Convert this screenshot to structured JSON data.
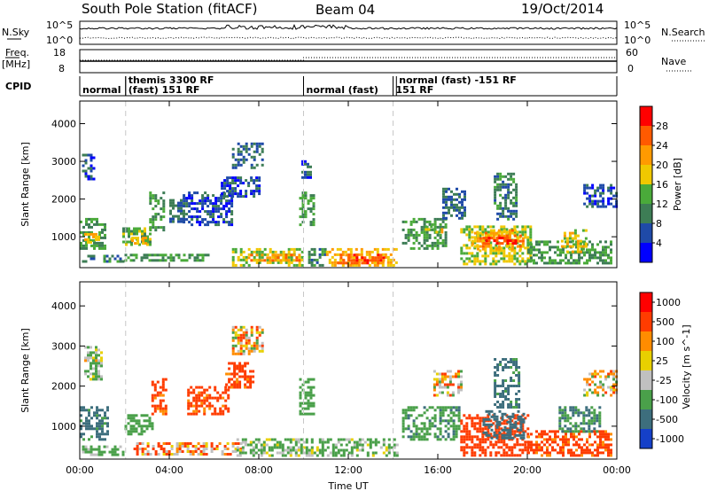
{
  "header": {
    "station": "South Pole Station (fitACF)",
    "beam": "Beam 04",
    "date": "19/Oct/2014"
  },
  "top_panels": {
    "nsky_label": "N.Sky",
    "nsearch_label": "N.Search",
    "freq_label_1": "Freq.",
    "freq_label_2": "[MHz]",
    "nave_label": "Nave",
    "cpid_label": "CPID",
    "nsky_ticks": [
      "10^5",
      "10^0"
    ],
    "nsearch_ticks": [
      "10^5",
      "10^0"
    ],
    "freq_ticks": [
      "18",
      "8"
    ],
    "nave_ticks": [
      "60",
      "0"
    ]
  },
  "cpid_modes": [
    {
      "label": "normal",
      "row": 1,
      "start_hour": 0.0
    },
    {
      "label": "themis 3300 RF",
      "row": 0,
      "start_hour": 2.05
    },
    {
      "label": "(fast) 151 RF",
      "row": 1,
      "start_hour": 2.05
    },
    {
      "label": "normal (fast)",
      "row": 1,
      "start_hour": 10.0
    },
    {
      "label": "151 RF",
      "row": 1,
      "start_hour": 14.0
    },
    {
      "label": "normal (fast) -151 RF",
      "row": 0,
      "start_hour": 14.15
    }
  ],
  "mode_change_hours": [
    2.05,
    10.0,
    14.0
  ],
  "axes": {
    "xlabel": "Time UT",
    "ylabel": "Slant Range [km]",
    "x_ticks": [
      "00:00",
      "04:00",
      "08:00",
      "12:00",
      "16:00",
      "20:00",
      "00:00"
    ],
    "y_ticks": [
      1000,
      2000,
      3000,
      4000
    ],
    "xlim": [
      0,
      24
    ],
    "ylim": [
      180,
      4600
    ]
  },
  "colors": {
    "power": [
      "#0000ff",
      "#1f4aa8",
      "#3d7d55",
      "#4aaa3a",
      "#f0c800",
      "#ff9a00",
      "#ff5a00",
      "#ff0000"
    ],
    "velocity": [
      "#1540c8",
      "#3d6e7d",
      "#4aa04a",
      "#c0c0c0",
      "#e8d000",
      "#ff8c00",
      "#ff3c00",
      "#ff0000"
    ]
  },
  "colorbars": [
    {
      "label": "Power [dB]",
      "ticks": [
        "28",
        "24",
        "20",
        "16",
        "12",
        "8",
        "4"
      ]
    },
    {
      "label": "Velocity [m s^-1]",
      "ticks": [
        "1000",
        "500",
        "100",
        "25",
        "-25",
        "-100",
        "-500",
        "-1000"
      ]
    }
  ],
  "chart_data": [
    {
      "type": "heatmap",
      "title": "Power",
      "xlabel": "Time UT",
      "ylabel": "Slant Range [km]",
      "xlim": [
        0,
        24
      ],
      "ylim": [
        180,
        4600
      ],
      "colorbar": "Power [dB]",
      "regions": [
        {
          "t0": 0.0,
          "t1": 1.1,
          "r0": 700,
          "r1": 1500,
          "value": 12
        },
        {
          "t0": 0.2,
          "t1": 0.8,
          "r0": 850,
          "r1": 1100,
          "value": 20
        },
        {
          "t0": 0.1,
          "t1": 0.6,
          "r0": 2500,
          "r1": 3200,
          "value": 6
        },
        {
          "t0": 0.1,
          "t1": 1.9,
          "r0": 320,
          "r1": 520,
          "value": 10
        },
        {
          "t0": 1.9,
          "t1": 3.2,
          "r0": 800,
          "r1": 1250,
          "value": 14
        },
        {
          "t0": 2.3,
          "t1": 2.9,
          "r0": 850,
          "r1": 1000,
          "value": 20
        },
        {
          "t0": 3.1,
          "t1": 3.8,
          "r0": 1200,
          "r1": 2200,
          "value": 12
        },
        {
          "t0": 4.0,
          "t1": 4.6,
          "r0": 1400,
          "r1": 2000,
          "value": 8
        },
        {
          "t0": 2.0,
          "t1": 6.0,
          "r0": 350,
          "r1": 550,
          "value": 12
        },
        {
          "t0": 4.6,
          "t1": 6.8,
          "r0": 1300,
          "r1": 2200,
          "value": 6
        },
        {
          "t0": 6.8,
          "t1": 8.2,
          "r0": 2800,
          "r1": 3500,
          "value": 8
        },
        {
          "t0": 6.3,
          "t1": 8.0,
          "r0": 2100,
          "r1": 2600,
          "value": 6
        },
        {
          "t0": 6.8,
          "t1": 10.0,
          "r0": 250,
          "r1": 700,
          "value": 16
        },
        {
          "t0": 7.5,
          "t1": 9.8,
          "r0": 350,
          "r1": 550,
          "value": 22
        },
        {
          "t0": 9.8,
          "t1": 10.4,
          "r0": 1300,
          "r1": 2200,
          "value": 12
        },
        {
          "t0": 9.9,
          "t1": 10.3,
          "r0": 2600,
          "r1": 3100,
          "value": 6
        },
        {
          "t0": 10.2,
          "t1": 11.0,
          "r0": 260,
          "r1": 700,
          "value": 10
        },
        {
          "t0": 11.0,
          "t1": 14.2,
          "r0": 250,
          "r1": 700,
          "value": 20
        },
        {
          "t0": 11.5,
          "t1": 13.6,
          "r0": 300,
          "r1": 550,
          "value": 26
        },
        {
          "t0": 14.4,
          "t1": 16.4,
          "r0": 700,
          "r1": 1500,
          "value": 12
        },
        {
          "t0": 15.3,
          "t1": 16.2,
          "r0": 1100,
          "r1": 1300,
          "value": 18
        },
        {
          "t0": 16.2,
          "t1": 17.2,
          "r0": 1500,
          "r1": 2300,
          "value": 8
        },
        {
          "t0": 17.0,
          "t1": 20.2,
          "r0": 250,
          "r1": 1300,
          "value": 16
        },
        {
          "t0": 17.5,
          "t1": 19.8,
          "r0": 700,
          "r1": 1200,
          "value": 22
        },
        {
          "t0": 18.0,
          "t1": 19.5,
          "r0": 800,
          "r1": 1000,
          "value": 28
        },
        {
          "t0": 18.5,
          "t1": 19.5,
          "r0": 1500,
          "r1": 2700,
          "value": 10
        },
        {
          "t0": 20.0,
          "t1": 23.8,
          "r0": 300,
          "r1": 900,
          "value": 12
        },
        {
          "t0": 21.5,
          "t1": 22.6,
          "r0": 600,
          "r1": 1200,
          "value": 18
        },
        {
          "t0": 22.5,
          "t1": 24.0,
          "r0": 1800,
          "r1": 2400,
          "value": 6
        }
      ]
    },
    {
      "type": "heatmap",
      "title": "Velocity",
      "xlabel": "Time UT",
      "ylabel": "Slant Range [km]",
      "xlim": [
        0,
        24
      ],
      "ylim": [
        180,
        4600
      ],
      "colorbar": "Velocity [m s^-1]",
      "regions": [
        {
          "t0": 0.0,
          "t1": 1.2,
          "r0": 700,
          "r1": 1500,
          "value": 600
        },
        {
          "t0": 0.2,
          "t1": 1.0,
          "r0": 2200,
          "r1": 3000,
          "value": 120
        },
        {
          "t0": 0.1,
          "t1": 2.0,
          "r0": 320,
          "r1": 520,
          "value": 200
        },
        {
          "t0": 2.0,
          "t1": 3.3,
          "r0": 800,
          "r1": 1300,
          "value": 300
        },
        {
          "t0": 3.2,
          "t1": 3.8,
          "r0": 1300,
          "r1": 2200,
          "value": -200
        },
        {
          "t0": 2.4,
          "t1": 7.2,
          "r0": 300,
          "r1": 600,
          "value": -50
        },
        {
          "t0": 4.8,
          "t1": 6.6,
          "r0": 1300,
          "r1": 2000,
          "value": -200
        },
        {
          "t0": 6.8,
          "t1": 8.2,
          "r0": 2800,
          "r1": 3500,
          "value": 0
        },
        {
          "t0": 6.5,
          "t1": 7.8,
          "r0": 2000,
          "r1": 2600,
          "value": -200
        },
        {
          "t0": 7.0,
          "t1": 14.2,
          "r0": 250,
          "r1": 700,
          "value": 150
        },
        {
          "t0": 9.8,
          "t1": 10.4,
          "r0": 1300,
          "r1": 2200,
          "value": 300
        },
        {
          "t0": 14.4,
          "t1": 17.0,
          "r0": 700,
          "r1": 1500,
          "value": 400
        },
        {
          "t0": 15.8,
          "t1": 17.0,
          "r0": 1800,
          "r1": 2400,
          "value": 0
        },
        {
          "t0": 17.0,
          "t1": 20.0,
          "r0": 250,
          "r1": 1300,
          "value": -300
        },
        {
          "t0": 18.0,
          "t1": 19.8,
          "r0": 700,
          "r1": 1400,
          "value": 700
        },
        {
          "t0": 18.5,
          "t1": 19.6,
          "r0": 1500,
          "r1": 2700,
          "value": 600
        },
        {
          "t0": 20.0,
          "t1": 23.8,
          "r0": 300,
          "r1": 900,
          "value": -200
        },
        {
          "t0": 21.4,
          "t1": 23.2,
          "r0": 900,
          "r1": 1500,
          "value": 500
        },
        {
          "t0": 22.5,
          "t1": 24.0,
          "r0": 1800,
          "r1": 2400,
          "value": 0
        }
      ]
    }
  ]
}
